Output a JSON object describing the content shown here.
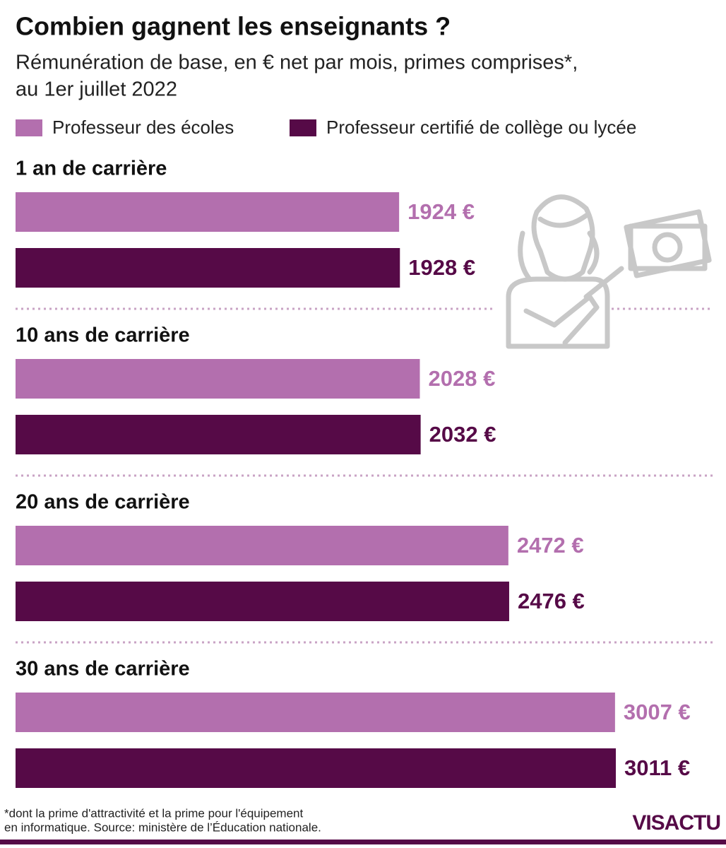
{
  "chart_data": {
    "type": "bar",
    "orientation": "horizontal",
    "title": "Combien gagnent les enseignants ?",
    "subtitle": [
      "Rémunération de base, en € net par mois, primes comprises*,",
      "au 1er juillet 2022"
    ],
    "categories": [
      "1 an de carrière",
      "10 ans de carrière",
      "20 ans de carrière",
      "30 ans de carrière"
    ],
    "series": [
      {
        "name": "Professeur des écoles",
        "color": "#b36fae",
        "values": [
          1924,
          2028,
          2472,
          3007
        ],
        "value_labels": [
          "1924 €",
          "2028 €",
          "2472 €",
          "3007 €"
        ]
      },
      {
        "name": "Professeur certifié de collège ou lycée",
        "color": "#560a47",
        "values": [
          1928,
          2032,
          2476,
          3011
        ],
        "value_labels": [
          "1928 €",
          "2032 €",
          "2476 €",
          "3011 €"
        ]
      }
    ],
    "note": [
      "*dont la prime d'attractivité et la prime pour l'équipement",
      "en informatique. Source: ministère de l’Éducation nationale."
    ],
    "credit": "VISACTU"
  }
}
